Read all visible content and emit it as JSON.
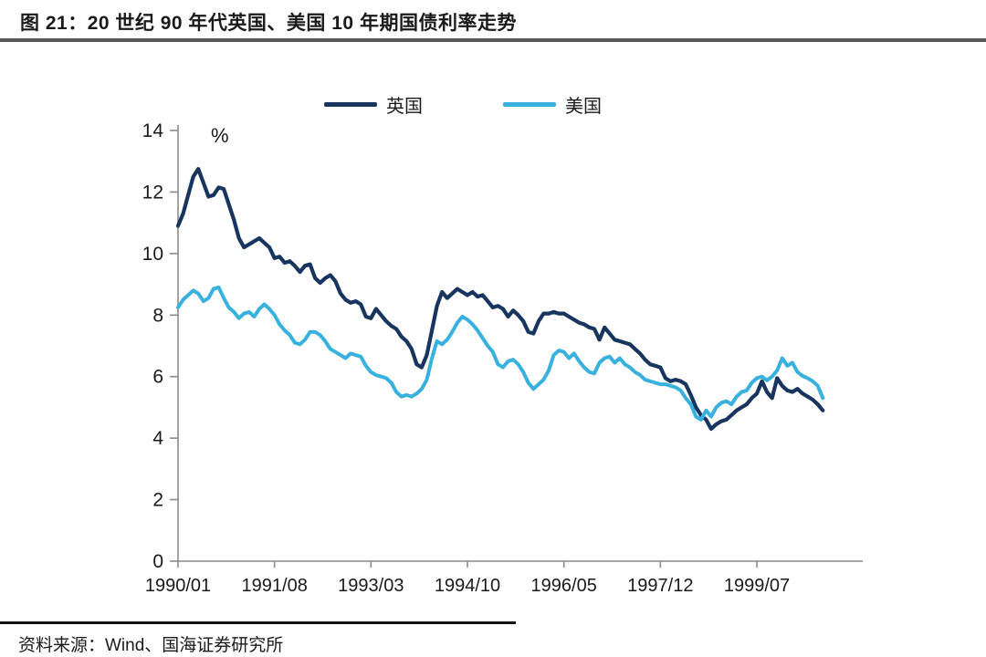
{
  "page": {
    "title": "图 21：20 世纪 90 年代英国、美国 10 年期国债利率走势",
    "source": "资料来源：Wind、国海证券研究所"
  },
  "colors": {
    "uk_line": "#17355e",
    "us_line": "#38b1de",
    "axis": "#8a8a8a",
    "text": "#1a1a1a",
    "title_rule": "#595959",
    "source_rule": "#141414"
  },
  "chart_data": {
    "type": "line",
    "title": "20 世纪 90 年代英国、美国 10 年期国债利率走势",
    "unit_label": "%",
    "xlabel": "",
    "ylabel": "%",
    "ylim": [
      0,
      14
    ],
    "y_ticks": [
      0,
      2,
      4,
      6,
      8,
      10,
      12,
      14
    ],
    "grid": false,
    "legend_position": "top-center",
    "x_start": "1990/01",
    "x_frequency": "monthly",
    "x_tick_labels": [
      "1990/01",
      "1991/08",
      "1993/03",
      "1994/10",
      "1996/05",
      "1997/12",
      "1999/07"
    ],
    "x_tick_month_indices": [
      0,
      19,
      38,
      57,
      76,
      95,
      114
    ],
    "series": [
      {
        "name": "英国",
        "color": "#17355e",
        "values": [
          10.9,
          11.3,
          11.9,
          12.5,
          12.75,
          12.3,
          11.85,
          11.9,
          12.15,
          12.1,
          11.6,
          11.1,
          10.5,
          10.2,
          10.3,
          10.4,
          10.5,
          10.35,
          10.2,
          9.85,
          9.9,
          9.7,
          9.75,
          9.6,
          9.4,
          9.6,
          9.65,
          9.2,
          9.05,
          9.2,
          9.3,
          9.1,
          8.7,
          8.5,
          8.4,
          8.45,
          8.35,
          7.95,
          7.9,
          8.2,
          8.0,
          7.8,
          7.65,
          7.55,
          7.3,
          7.15,
          6.9,
          6.4,
          6.3,
          6.7,
          7.5,
          8.3,
          8.75,
          8.55,
          8.7,
          8.85,
          8.75,
          8.65,
          8.75,
          8.6,
          8.65,
          8.45,
          8.25,
          8.3,
          8.2,
          7.95,
          8.15,
          8.0,
          7.8,
          7.45,
          7.4,
          7.8,
          8.05,
          8.05,
          8.1,
          8.05,
          8.05,
          7.95,
          7.85,
          7.75,
          7.7,
          7.6,
          7.55,
          7.2,
          7.6,
          7.4,
          7.2,
          7.15,
          7.1,
          7.05,
          6.9,
          6.75,
          6.55,
          6.4,
          6.35,
          6.3,
          5.95,
          5.85,
          5.9,
          5.85,
          5.75,
          5.4,
          5.0,
          4.75,
          4.6,
          4.3,
          4.45,
          4.55,
          4.6,
          4.75,
          4.9,
          5.0,
          5.1,
          5.3,
          5.45,
          5.85,
          5.5,
          5.3,
          5.95,
          5.7,
          5.55,
          5.5,
          5.6,
          5.45,
          5.35,
          5.25,
          5.1,
          4.9
        ]
      },
      {
        "name": "美国",
        "color": "#38b1de",
        "values": [
          8.25,
          8.5,
          8.65,
          8.8,
          8.7,
          8.45,
          8.55,
          8.85,
          8.9,
          8.55,
          8.25,
          8.1,
          7.9,
          8.05,
          8.1,
          7.95,
          8.2,
          8.35,
          8.2,
          8.0,
          7.7,
          7.5,
          7.35,
          7.1,
          7.05,
          7.2,
          7.45,
          7.45,
          7.35,
          7.15,
          6.9,
          6.8,
          6.7,
          6.6,
          6.75,
          6.7,
          6.65,
          6.35,
          6.15,
          6.05,
          6.0,
          5.95,
          5.8,
          5.5,
          5.35,
          5.4,
          5.35,
          5.45,
          5.6,
          5.9,
          6.6,
          7.15,
          7.05,
          7.2,
          7.45,
          7.75,
          7.95,
          7.85,
          7.7,
          7.5,
          7.25,
          7.0,
          6.8,
          6.4,
          6.3,
          6.5,
          6.55,
          6.4,
          6.15,
          5.8,
          5.6,
          5.75,
          5.9,
          6.2,
          6.7,
          6.85,
          6.8,
          6.6,
          6.75,
          6.5,
          6.3,
          6.15,
          6.1,
          6.45,
          6.6,
          6.65,
          6.45,
          6.6,
          6.4,
          6.3,
          6.15,
          6.05,
          5.9,
          5.85,
          5.8,
          5.75,
          5.75,
          5.7,
          5.65,
          5.55,
          5.3,
          5.1,
          4.7,
          4.6,
          4.9,
          4.7,
          5.0,
          5.15,
          5.2,
          5.1,
          5.35,
          5.5,
          5.55,
          5.8,
          5.95,
          6.0,
          5.88,
          6.0,
          6.2,
          6.6,
          6.35,
          6.45,
          6.15,
          6.02,
          5.95,
          5.85,
          5.7,
          5.3
        ]
      }
    ]
  }
}
